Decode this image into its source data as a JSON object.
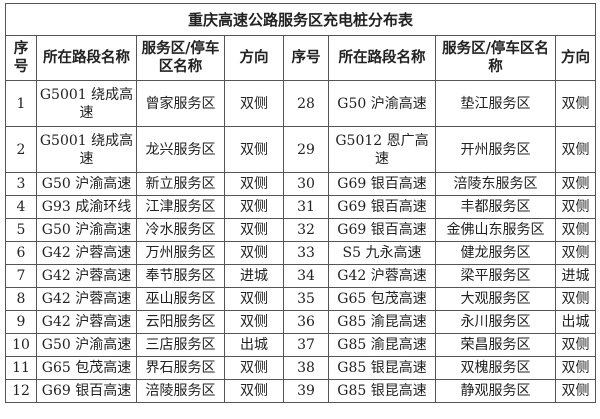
{
  "title": "重庆高速公路服务区充电桩分布表",
  "headers": {
    "left": [
      "序号",
      "所在路段名称",
      "服务区/停车区名称",
      "方向"
    ],
    "right": [
      "序号",
      "所在路段名称",
      "服务区/停车区名称",
      "方向"
    ]
  },
  "rows": [
    {
      "l": [
        "1",
        "G5001 绕成高速",
        "曾家服务区",
        "双侧"
      ],
      "r": [
        "28",
        "G50 沪渝高速",
        "垫江服务区",
        "双侧"
      ]
    },
    {
      "l": [
        "2",
        "G5001 绕成高速",
        "龙兴服务区",
        "双侧"
      ],
      "r": [
        "29",
        "G5012 恩广高速",
        "开州服务区",
        "双侧"
      ]
    },
    {
      "l": [
        "3",
        "G50 沪渝高速",
        "新立服务区",
        "双侧"
      ],
      "r": [
        "30",
        "G69 银百高速",
        "涪陵东服务区",
        "双侧"
      ]
    },
    {
      "l": [
        "4",
        "G93 成渝环线",
        "江津服务区",
        "双侧"
      ],
      "r": [
        "31",
        "G69 银百高速",
        "丰都服务区",
        "双侧"
      ]
    },
    {
      "l": [
        "5",
        "G50 沪渝高速",
        "冷水服务区",
        "双侧"
      ],
      "r": [
        "32",
        "G69 银百高速",
        "金佛山东服务区",
        "双侧"
      ]
    },
    {
      "l": [
        "6",
        "G42 沪蓉高速",
        "万州服务区",
        "双侧"
      ],
      "r": [
        "33",
        "S5 九永高速",
        "健龙服务区",
        "双侧"
      ]
    },
    {
      "l": [
        "7",
        "G42 沪蓉高速",
        "奉节服务区",
        "进城"
      ],
      "r": [
        "34",
        "G42 沪蓉高速",
        "梁平服务区",
        "进城"
      ]
    },
    {
      "l": [
        "8",
        "G42 沪蓉高速",
        "巫山服务区",
        "双侧"
      ],
      "r": [
        "35",
        "G65 包茂高速",
        "大观服务区",
        "双侧"
      ]
    },
    {
      "l": [
        "9",
        "G42 沪蓉高速",
        "云阳服务区",
        "双侧"
      ],
      "r": [
        "36",
        "G85 渝昆高速",
        "永川服务区",
        "出城"
      ]
    },
    {
      "l": [
        "10",
        "G50 沪渝高速",
        "三店服务区",
        "出城"
      ],
      "r": [
        "37",
        "G85 渝昆高速",
        "荣昌服务区",
        "双侧"
      ]
    },
    {
      "l": [
        "11",
        "G65 包茂高速",
        "界石服务区",
        "双侧"
      ],
      "r": [
        "38",
        "G85 银昆高速",
        "双槐服务区",
        "双侧"
      ]
    },
    {
      "l": [
        "12",
        "G69 银百高速",
        "涪陵服务区",
        "双侧"
      ],
      "r": [
        "39",
        "G85 银昆高速",
        "静观服务区",
        "双侧"
      ]
    }
  ]
}
